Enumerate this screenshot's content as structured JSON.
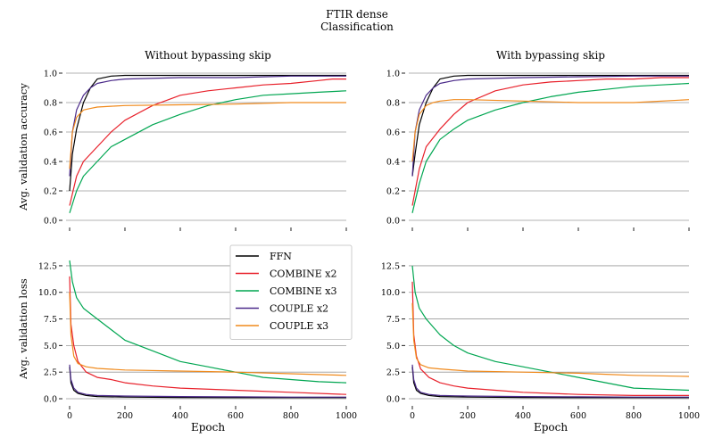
{
  "figure": {
    "title_line1": "FTIR dense",
    "title_line2": "Classification"
  },
  "legend": {
    "placement": "center-right of bottom-left panel",
    "entries": [
      {
        "label": "FFN",
        "color": "#000000"
      },
      {
        "label": "COMBINE x2",
        "color": "#e8202a"
      },
      {
        "label": "COMBINE x3",
        "color": "#00a651"
      },
      {
        "label": "COUPLE x2",
        "color": "#4b2a8a"
      },
      {
        "label": "COUPLE x3",
        "color": "#f08a1c"
      }
    ]
  },
  "chart_data": [
    {
      "type": "line",
      "title": "Without bypassing skip",
      "xlabel": "",
      "ylabel": "Avg. validation accuracy",
      "xlim": [
        0,
        1000
      ],
      "ylim": [
        0,
        1.0
      ],
      "yticks": [
        "0.0",
        "0.2",
        "0.4",
        "0.6",
        "0.8",
        "1.0"
      ],
      "xticks": [
        0,
        200,
        400,
        600,
        800,
        1000
      ],
      "grid": "horizontal",
      "series": [
        {
          "name": "FFN",
          "x": [
            0,
            10,
            25,
            50,
            75,
            100,
            150,
            200,
            400,
            600,
            800,
            1000
          ],
          "y": [
            0.2,
            0.45,
            0.62,
            0.8,
            0.9,
            0.96,
            0.98,
            0.985,
            0.985,
            0.985,
            0.985,
            0.985
          ]
        },
        {
          "name": "COMBINE x2",
          "x": [
            0,
            25,
            50,
            100,
            150,
            200,
            300,
            400,
            500,
            600,
            700,
            800,
            900,
            950,
            1000
          ],
          "y": [
            0.1,
            0.3,
            0.4,
            0.5,
            0.6,
            0.68,
            0.78,
            0.85,
            0.88,
            0.9,
            0.92,
            0.93,
            0.95,
            0.96,
            0.96
          ]
        },
        {
          "name": "COMBINE x3",
          "x": [
            0,
            25,
            50,
            100,
            150,
            200,
            300,
            400,
            500,
            600,
            700,
            800,
            900,
            1000
          ],
          "y": [
            0.05,
            0.2,
            0.3,
            0.4,
            0.5,
            0.55,
            0.65,
            0.72,
            0.78,
            0.82,
            0.85,
            0.86,
            0.87,
            0.88
          ]
        },
        {
          "name": "COUPLE x2",
          "x": [
            0,
            10,
            25,
            50,
            75,
            100,
            150,
            200,
            400,
            600,
            800,
            1000
          ],
          "y": [
            0.3,
            0.6,
            0.75,
            0.85,
            0.9,
            0.93,
            0.95,
            0.96,
            0.97,
            0.97,
            0.98,
            0.98
          ]
        },
        {
          "name": "COUPLE x3",
          "x": [
            0,
            10,
            25,
            50,
            75,
            100,
            150,
            200,
            400,
            600,
            800,
            1000
          ],
          "y": [
            0.35,
            0.6,
            0.7,
            0.75,
            0.76,
            0.77,
            0.775,
            0.78,
            0.785,
            0.79,
            0.8,
            0.8
          ]
        }
      ]
    },
    {
      "type": "line",
      "title": "With bypassing skip",
      "xlabel": "",
      "ylabel": "",
      "xlim": [
        0,
        1000
      ],
      "ylim": [
        0,
        1.0
      ],
      "yticks": [
        "0.0",
        "0.2",
        "0.4",
        "0.6",
        "0.8",
        "1.0"
      ],
      "xticks": [
        0,
        200,
        400,
        600,
        800,
        1000
      ],
      "grid": "horizontal",
      "series": [
        {
          "name": "FFN",
          "x": [
            0,
            10,
            25,
            50,
            75,
            100,
            150,
            200,
            400,
            600,
            800,
            1000
          ],
          "y": [
            0.3,
            0.45,
            0.65,
            0.8,
            0.9,
            0.96,
            0.98,
            0.985,
            0.985,
            0.985,
            0.985,
            0.985
          ]
        },
        {
          "name": "COMBINE x2",
          "x": [
            0,
            25,
            50,
            100,
            150,
            200,
            300,
            400,
            500,
            600,
            700,
            800,
            900,
            950,
            1000
          ],
          "y": [
            0.1,
            0.35,
            0.5,
            0.62,
            0.72,
            0.8,
            0.88,
            0.92,
            0.94,
            0.95,
            0.96,
            0.96,
            0.97,
            0.97,
            0.97
          ]
        },
        {
          "name": "COMBINE x3",
          "x": [
            0,
            25,
            50,
            100,
            150,
            200,
            300,
            400,
            500,
            600,
            700,
            800,
            900,
            1000
          ],
          "y": [
            0.05,
            0.25,
            0.4,
            0.55,
            0.62,
            0.68,
            0.75,
            0.8,
            0.84,
            0.87,
            0.89,
            0.91,
            0.92,
            0.93
          ]
        },
        {
          "name": "COUPLE x2",
          "x": [
            0,
            10,
            25,
            50,
            75,
            100,
            150,
            200,
            400,
            600,
            800,
            1000
          ],
          "y": [
            0.3,
            0.6,
            0.75,
            0.85,
            0.9,
            0.93,
            0.95,
            0.96,
            0.97,
            0.975,
            0.98,
            0.98
          ]
        },
        {
          "name": "COUPLE x3",
          "x": [
            0,
            10,
            25,
            50,
            75,
            100,
            150,
            200,
            400,
            600,
            700,
            800,
            1000
          ],
          "y": [
            0.4,
            0.6,
            0.72,
            0.78,
            0.8,
            0.81,
            0.82,
            0.82,
            0.81,
            0.8,
            0.8,
            0.8,
            0.82
          ]
        }
      ]
    },
    {
      "type": "line",
      "title": "",
      "xlabel": "Epoch",
      "ylabel": "Avg. validation loss",
      "xlim": [
        0,
        1000
      ],
      "ylim": [
        0,
        13.5
      ],
      "yticks": [
        "0.0",
        "2.5",
        "5.0",
        "7.5",
        "10.0",
        "12.5"
      ],
      "xticks": [
        0,
        200,
        400,
        600,
        800,
        1000
      ],
      "grid": "horizontal",
      "series": [
        {
          "name": "FFN",
          "x": [
            0,
            5,
            15,
            30,
            60,
            100,
            200,
            400,
            600,
            800,
            1000
          ],
          "y": [
            3.0,
            1.5,
            0.8,
            0.5,
            0.3,
            0.2,
            0.15,
            0.12,
            0.1,
            0.1,
            0.1
          ]
        },
        {
          "name": "COMBINE x2",
          "x": [
            0,
            5,
            15,
            30,
            60,
            100,
            150,
            200,
            300,
            400,
            600,
            800,
            1000
          ],
          "y": [
            11.5,
            7.0,
            5.0,
            3.5,
            2.5,
            2.0,
            1.8,
            1.5,
            1.2,
            1.0,
            0.8,
            0.6,
            0.4
          ]
        },
        {
          "name": "COMBINE x3",
          "x": [
            0,
            10,
            25,
            50,
            100,
            150,
            200,
            300,
            400,
            500,
            600,
            700,
            800,
            900,
            1000
          ],
          "y": [
            13.0,
            11.0,
            9.5,
            8.5,
            7.5,
            6.5,
            5.5,
            4.5,
            3.5,
            3.0,
            2.5,
            2.0,
            1.8,
            1.6,
            1.5
          ]
        },
        {
          "name": "COUPLE x2",
          "x": [
            0,
            5,
            15,
            30,
            60,
            100,
            200,
            400,
            600,
            800,
            1000
          ],
          "y": [
            3.2,
            1.8,
            1.0,
            0.6,
            0.4,
            0.3,
            0.25,
            0.2,
            0.18,
            0.15,
            0.15
          ]
        },
        {
          "name": "COUPLE x3",
          "x": [
            0,
            5,
            15,
            30,
            60,
            100,
            200,
            400,
            600,
            800,
            1000
          ],
          "y": [
            10.0,
            6.0,
            4.0,
            3.3,
            3.0,
            2.85,
            2.7,
            2.6,
            2.5,
            2.35,
            2.2
          ]
        }
      ]
    },
    {
      "type": "line",
      "title": "",
      "xlabel": "Epoch",
      "ylabel": "",
      "xlim": [
        0,
        1000
      ],
      "ylim": [
        0,
        13.5
      ],
      "yticks": [
        "0.0",
        "2.5",
        "5.0",
        "7.5",
        "10.0",
        "12.5"
      ],
      "xticks": [
        0,
        200,
        400,
        600,
        800,
        1000
      ],
      "grid": "horizontal",
      "series": [
        {
          "name": "FFN",
          "x": [
            0,
            5,
            15,
            30,
            60,
            100,
            200,
            400,
            600,
            800,
            1000
          ],
          "y": [
            3.0,
            1.5,
            0.8,
            0.5,
            0.3,
            0.2,
            0.15,
            0.12,
            0.1,
            0.1,
            0.1
          ]
        },
        {
          "name": "COMBINE x2",
          "x": [
            0,
            5,
            15,
            30,
            60,
            100,
            150,
            200,
            300,
            400,
            600,
            800,
            1000
          ],
          "y": [
            11.0,
            6.0,
            4.0,
            2.8,
            2.0,
            1.5,
            1.2,
            1.0,
            0.8,
            0.6,
            0.4,
            0.3,
            0.3
          ]
        },
        {
          "name": "COMBINE x3",
          "x": [
            0,
            10,
            25,
            50,
            100,
            150,
            200,
            300,
            400,
            500,
            600,
            700,
            800,
            900,
            1000
          ],
          "y": [
            12.5,
            10.0,
            8.5,
            7.5,
            6.0,
            5.0,
            4.3,
            3.5,
            3.0,
            2.5,
            2.0,
            1.5,
            1.0,
            0.9,
            0.8
          ]
        },
        {
          "name": "COUPLE x2",
          "x": [
            0,
            5,
            15,
            30,
            60,
            100,
            200,
            400,
            600,
            800,
            1000
          ],
          "y": [
            3.2,
            1.8,
            1.0,
            0.6,
            0.4,
            0.3,
            0.25,
            0.2,
            0.18,
            0.15,
            0.15
          ]
        },
        {
          "name": "COUPLE x3",
          "x": [
            0,
            5,
            15,
            30,
            60,
            100,
            200,
            400,
            600,
            700,
            800,
            1000
          ],
          "y": [
            9.0,
            5.5,
            3.8,
            3.2,
            2.9,
            2.8,
            2.6,
            2.5,
            2.4,
            2.3,
            2.2,
            2.1
          ]
        }
      ]
    }
  ]
}
